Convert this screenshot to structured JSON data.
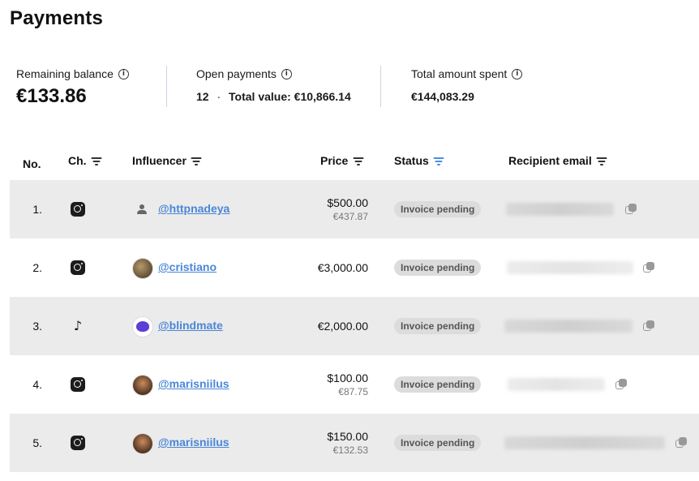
{
  "page": {
    "title": "Payments"
  },
  "stats": {
    "remaining_label": "Remaining balance",
    "remaining_value": "€133.86",
    "open_label": "Open payments",
    "open_count": "12",
    "open_sep": "·",
    "open_total": "Total value: €10,866.14",
    "spent_label": "Total amount spent",
    "spent_value": "€144,083.29"
  },
  "table": {
    "headers": {
      "no": "No.",
      "ch": "Ch.",
      "influencer": "Influencer",
      "price": "Price",
      "status": "Status",
      "email": "Recipient email"
    },
    "rows": [
      {
        "no": "1.",
        "channel": "instagram",
        "avatar": "person-icon",
        "handle": "@httpnadeya",
        "price": "$500.00",
        "price_eur": "€437.87",
        "status": "Invoice pending"
      },
      {
        "no": "2.",
        "channel": "instagram",
        "avatar": "photo",
        "handle": "@cristiano",
        "price": "€3,000.00",
        "price_eur": "",
        "status": "Invoice pending"
      },
      {
        "no": "3.",
        "channel": "tiktok",
        "avatar": "purple-logo",
        "handle": "@blindmate",
        "price": "€2,000.00",
        "price_eur": "",
        "status": "Invoice pending"
      },
      {
        "no": "4.",
        "channel": "instagram",
        "avatar": "photo",
        "handle": "@marisniilus",
        "price": "$100.00",
        "price_eur": "€87.75",
        "status": "Invoice pending"
      },
      {
        "no": "5.",
        "channel": "instagram",
        "avatar": "photo",
        "handle": "@marisniilus",
        "price": "$150.00",
        "price_eur": "€132.53",
        "status": "Invoice pending"
      }
    ]
  }
}
